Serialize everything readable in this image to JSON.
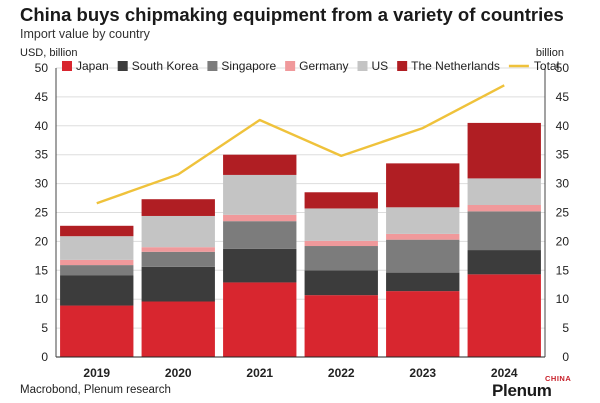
{
  "header": {
    "title": "China buys chipmaking equipment from a variety of countries",
    "subtitle": "Import value by country"
  },
  "footer": {
    "source": "Macrobond, Plenum research",
    "logo": "Plenum",
    "logo_sup": "CHINA"
  },
  "chart_data": {
    "type": "bar",
    "stacked": true,
    "categories": [
      "2019",
      "2020",
      "2021",
      "2022",
      "2023",
      "2024"
    ],
    "ylabel_left": "USD, billion",
    "ylabel_right": "billion",
    "ylim": [
      0,
      50
    ],
    "yticks": [
      0,
      5,
      10,
      15,
      20,
      25,
      30,
      35,
      40,
      45,
      50
    ],
    "grid": true,
    "legend_position": "top",
    "series": [
      {
        "name": "Japan",
        "color": "#d8262f",
        "values": [
          8.9,
          9.6,
          12.9,
          10.7,
          11.4,
          14.3
        ]
      },
      {
        "name": "South Korea",
        "color": "#3c3c3c",
        "values": [
          5.2,
          6.0,
          5.8,
          4.3,
          3.2,
          4.2
        ]
      },
      {
        "name": "Singapore",
        "color": "#7c7c7c",
        "values": [
          1.8,
          2.6,
          4.8,
          4.2,
          5.7,
          6.7
        ]
      },
      {
        "name": "Germany",
        "color": "#f0999b",
        "values": [
          0.9,
          0.8,
          1.1,
          0.9,
          1.0,
          1.1
        ]
      },
      {
        "name": "US",
        "color": "#c4c4c4",
        "values": [
          4.1,
          5.4,
          6.9,
          5.6,
          4.6,
          4.6
        ]
      },
      {
        "name": "The Netherlands",
        "color": "#b01e23",
        "values": [
          1.8,
          2.9,
          3.5,
          2.8,
          7.6,
          9.6
        ]
      }
    ],
    "line_series": {
      "name": "Total",
      "color": "#efc23b",
      "values": [
        26.6,
        31.6,
        41.0,
        34.8,
        39.6,
        47.0
      ]
    }
  }
}
